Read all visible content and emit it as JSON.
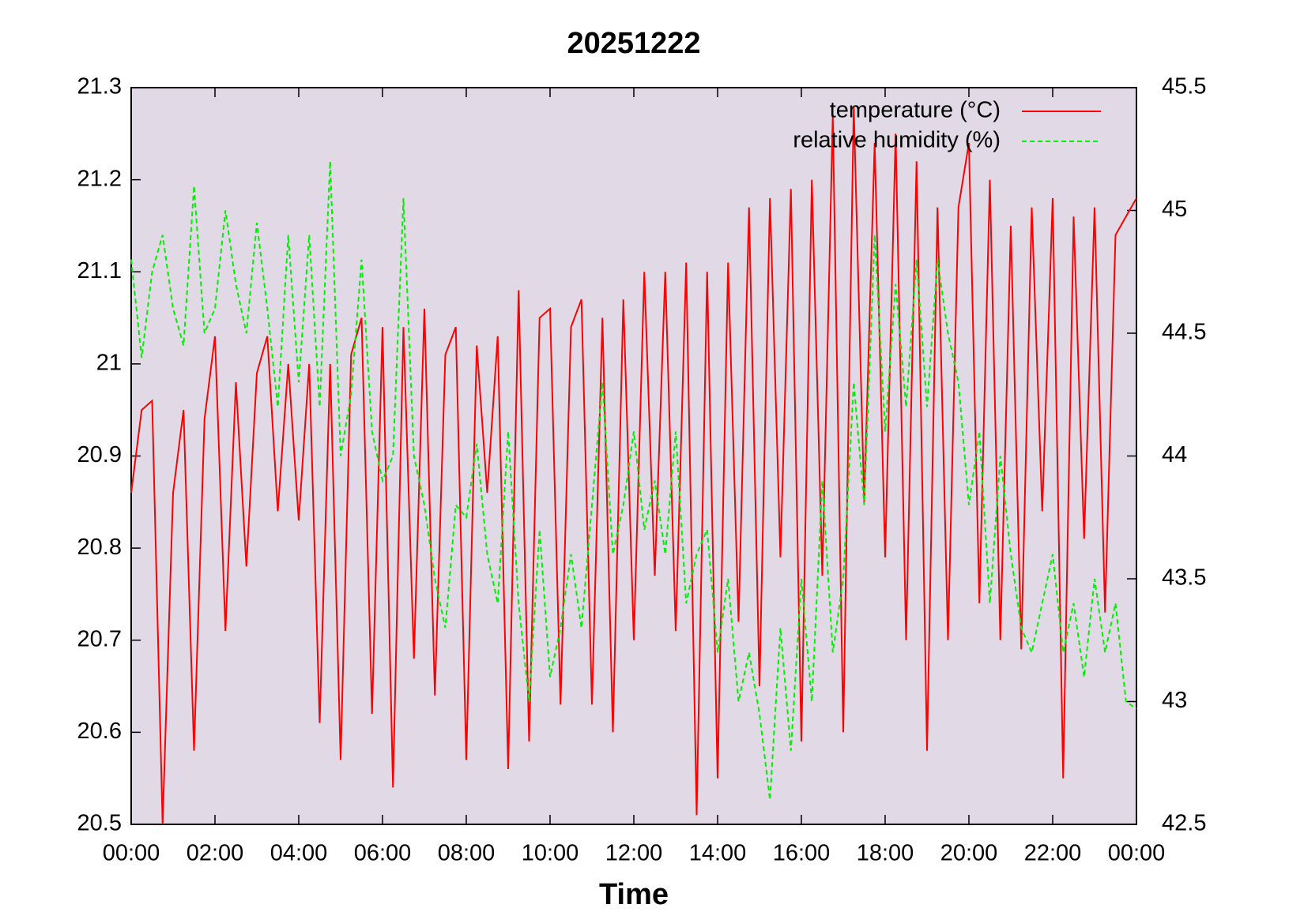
{
  "chart_data": {
    "type": "line",
    "title": "20251222",
    "x_label": "Time",
    "x": [
      0,
      15,
      30,
      45,
      60,
      75,
      90,
      105,
      120,
      135,
      150,
      165,
      180,
      195,
      210,
      225,
      240,
      255,
      270,
      285,
      300,
      315,
      330,
      345,
      360,
      375,
      390,
      405,
      420,
      435,
      450,
      465,
      480,
      495,
      510,
      525,
      540,
      555,
      570,
      585,
      600,
      615,
      630,
      645,
      660,
      675,
      690,
      705,
      720,
      735,
      750,
      765,
      780,
      795,
      810,
      825,
      840,
      855,
      870,
      885,
      900,
      915,
      930,
      945,
      960,
      975,
      990,
      1005,
      1020,
      1035,
      1050,
      1065,
      1080,
      1095,
      1110,
      1125,
      1140,
      1155,
      1170,
      1185,
      1200,
      1215,
      1230,
      1245,
      1260,
      1275,
      1290,
      1305,
      1320,
      1335,
      1350,
      1365,
      1380,
      1395,
      1410,
      1425,
      1440
    ],
    "series": [
      {
        "name": "temperature (°C)",
        "color": "#ff0000",
        "dashed": false,
        "axis": "y",
        "values": [
          20.86,
          20.95,
          20.96,
          20.5,
          20.86,
          20.95,
          20.58,
          20.94,
          21.03,
          20.71,
          20.98,
          20.78,
          20.99,
          21.03,
          20.84,
          21.0,
          20.83,
          21.0,
          20.61,
          21.0,
          20.57,
          21.01,
          21.05,
          20.62,
          21.04,
          20.54,
          21.04,
          20.68,
          21.06,
          20.64,
          21.01,
          21.04,
          20.57,
          21.02,
          20.86,
          21.03,
          20.56,
          21.08,
          20.59,
          21.05,
          21.06,
          20.63,
          21.04,
          21.07,
          20.63,
          21.05,
          20.6,
          21.07,
          20.7,
          21.1,
          20.77,
          21.1,
          20.71,
          21.11,
          20.51,
          21.1,
          20.55,
          21.11,
          20.72,
          21.17,
          20.65,
          21.18,
          20.79,
          21.19,
          20.59,
          21.2,
          20.77,
          21.27,
          20.6,
          21.28,
          20.85,
          21.24,
          20.79,
          21.25,
          20.7,
          21.22,
          20.58,
          21.17,
          20.7,
          21.17,
          21.24,
          20.74,
          21.2,
          20.7,
          21.15,
          20.69,
          21.17,
          20.84,
          21.18,
          20.55,
          21.16,
          20.81,
          21.17,
          20.73,
          21.14,
          21.16,
          21.18
        ]
      },
      {
        "name": "relative humidity (%)",
        "color": "#00ee00",
        "dashed": true,
        "axis": "y2",
        "values": [
          44.8,
          44.4,
          44.75,
          44.9,
          44.6,
          44.45,
          45.1,
          44.5,
          44.6,
          45.0,
          44.7,
          44.5,
          44.95,
          44.6,
          44.2,
          44.9,
          44.3,
          44.9,
          44.2,
          45.2,
          44.0,
          44.25,
          44.8,
          44.1,
          43.9,
          44.0,
          45.05,
          44.0,
          43.8,
          43.5,
          43.3,
          43.8,
          43.75,
          44.05,
          43.6,
          43.4,
          44.1,
          43.4,
          43.0,
          43.7,
          43.1,
          43.3,
          43.6,
          43.3,
          43.8,
          44.3,
          43.6,
          43.8,
          44.1,
          43.7,
          43.9,
          43.6,
          44.1,
          43.4,
          43.6,
          43.7,
          43.2,
          43.5,
          43.0,
          43.2,
          42.95,
          42.6,
          43.3,
          42.8,
          43.5,
          43.0,
          43.9,
          43.2,
          43.5,
          44.3,
          43.8,
          44.9,
          44.1,
          44.7,
          44.2,
          44.8,
          44.2,
          44.8,
          44.5,
          44.3,
          43.8,
          44.1,
          43.4,
          44.0,
          43.6,
          43.3,
          43.2,
          43.4,
          43.6,
          43.2,
          43.4,
          43.1,
          43.5,
          43.2,
          43.4,
          43.0,
          42.97
        ]
      }
    ],
    "xlim": [
      0,
      1440
    ],
    "xticks": [
      {
        "value": 0,
        "label": "00:00"
      },
      {
        "value": 120,
        "label": "02:00"
      },
      {
        "value": 240,
        "label": "04:00"
      },
      {
        "value": 360,
        "label": "06:00"
      },
      {
        "value": 480,
        "label": "08:00"
      },
      {
        "value": 600,
        "label": "10:00"
      },
      {
        "value": 720,
        "label": "12:00"
      },
      {
        "value": 840,
        "label": "14:00"
      },
      {
        "value": 960,
        "label": "16:00"
      },
      {
        "value": 1080,
        "label": "18:00"
      },
      {
        "value": 1200,
        "label": "20:00"
      },
      {
        "value": 1320,
        "label": "22:00"
      },
      {
        "value": 1440,
        "label": "00:00"
      }
    ],
    "ylim": [
      20.5,
      21.3
    ],
    "yticks": [
      20.5,
      20.6,
      20.7,
      20.8,
      20.9,
      21,
      21.1,
      21.2,
      21.3
    ],
    "y2lim": [
      42.5,
      45.5
    ],
    "y2ticks": [
      42.5,
      43,
      43.5,
      44,
      44.5,
      45,
      45.5
    ],
    "legend": "top-right",
    "plot_background": "#e1dae6",
    "grid": false
  }
}
